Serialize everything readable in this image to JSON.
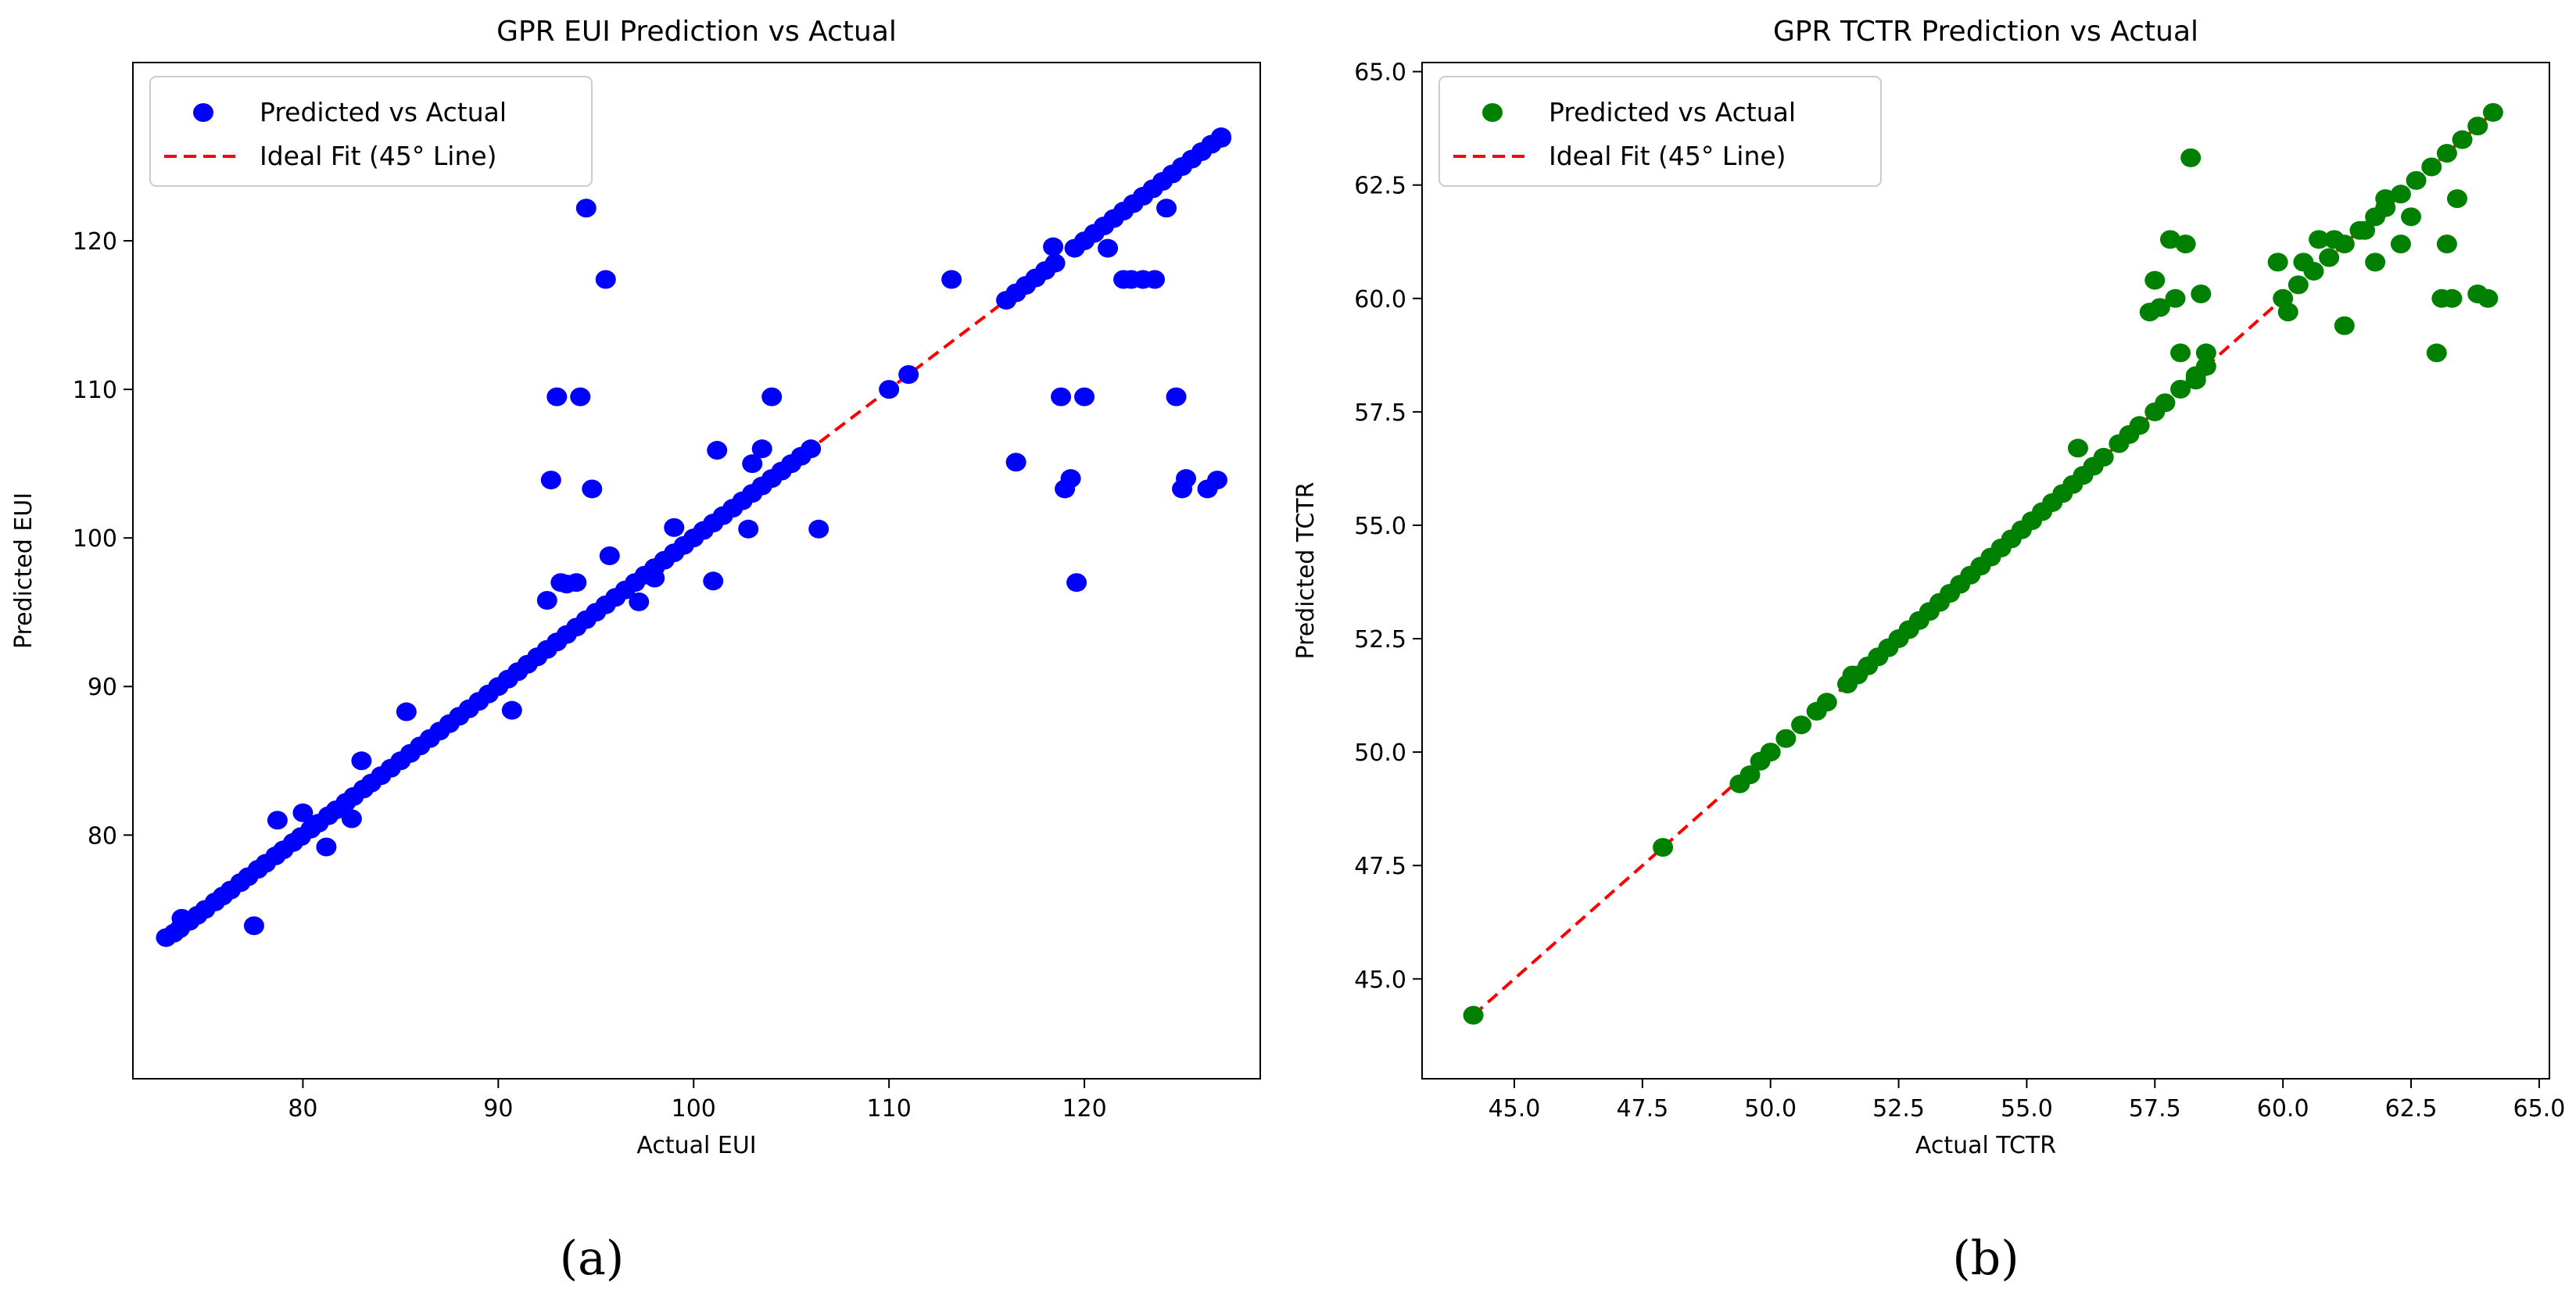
{
  "chart_data": [
    {
      "type": "scatter",
      "title": "GPR EUI Prediction vs Actual",
      "xlabel": "Actual EUI",
      "ylabel": "Predicted EUI",
      "xlim": [
        71.3,
        129.0
      ],
      "ylim": [
        63.6,
        132.0
      ],
      "xticks": [
        80,
        90,
        100,
        110,
        120
      ],
      "yticks": [
        80,
        90,
        100,
        110,
        120
      ],
      "tick_format": 0,
      "point_color": "#0000ff",
      "ideal_color": "#ff0000",
      "ideal_range": [
        73,
        127
      ],
      "legend": {
        "location": "top-left",
        "entries": [
          "Predicted vs Actual",
          "Ideal Fit (45° Line)"
        ]
      },
      "caption": "(a)",
      "series": [
        {
          "name": "Predicted vs Actual",
          "x": [
            73.0,
            73.4,
            73.7,
            74.2,
            74.6,
            75.0,
            75.5,
            75.9,
            76.3,
            76.8,
            77.2,
            77.7,
            78.1,
            78.6,
            79.0,
            79.5,
            79.9,
            80.4,
            80.8,
            81.3,
            81.7,
            82.2,
            82.6,
            83.1,
            83.5,
            84.0,
            84.5,
            85.0,
            85.5,
            86.0,
            86.5,
            87.0,
            87.5,
            88.0,
            88.5,
            89.0,
            89.5,
            90.0,
            90.5,
            91.0,
            91.5,
            92.0,
            92.5,
            93.0,
            93.5,
            94.0,
            94.5,
            95.0,
            95.5,
            96.0,
            96.5,
            97.0,
            97.5,
            98.0,
            98.5,
            99.0,
            99.5,
            100.0,
            100.5,
            101.0,
            101.5,
            102.0,
            102.5,
            103.0,
            103.5,
            104.0,
            104.5,
            105.0,
            105.5,
            106.0,
            110.0,
            111.0,
            116.0,
            116.5,
            117.0,
            117.5,
            118.0,
            118.5,
            119.5,
            120.0,
            120.5,
            121.0,
            121.5,
            122.0,
            122.5,
            123.0,
            123.5,
            124.0,
            124.5,
            125.0,
            125.5,
            126.0,
            126.5,
            127.0,
            73.8,
            77.5,
            78.7,
            80.0,
            81.2,
            82.5,
            83.0,
            85.3,
            90.7,
            92.5,
            92.7,
            93.0,
            93.2,
            93.5,
            94.0,
            94.2,
            94.5,
            94.8,
            95.5,
            95.7,
            97.2,
            98.0,
            99.0,
            101.0,
            101.2,
            102.8,
            103.0,
            103.5,
            104.0,
            106.4,
            113.2,
            116.5,
            118.4,
            118.8,
            119.0,
            119.3,
            119.6,
            120.0,
            121.2,
            122.0,
            122.4,
            123.0,
            123.6,
            124.2,
            124.7,
            125.0,
            125.2,
            126.3,
            126.8,
            127.0
          ],
          "y": [
            73.1,
            73.4,
            73.7,
            74.2,
            74.6,
            75.0,
            75.5,
            75.9,
            76.3,
            76.8,
            77.2,
            77.7,
            78.1,
            78.6,
            79.0,
            79.5,
            79.9,
            80.4,
            80.8,
            81.3,
            81.7,
            82.2,
            82.6,
            83.1,
            83.5,
            84.0,
            84.5,
            85.0,
            85.5,
            86.0,
            86.5,
            87.0,
            87.5,
            88.0,
            88.5,
            89.0,
            89.5,
            90.0,
            90.5,
            91.0,
            91.5,
            92.0,
            92.5,
            93.0,
            93.5,
            94.0,
            94.5,
            95.0,
            95.5,
            96.0,
            96.5,
            97.0,
            97.5,
            98.0,
            98.5,
            99.0,
            99.5,
            100.0,
            100.5,
            101.0,
            101.5,
            102.0,
            102.5,
            103.0,
            103.5,
            104.0,
            104.5,
            105.0,
            105.5,
            106.0,
            110.0,
            111.0,
            116.0,
            116.5,
            117.0,
            117.5,
            118.0,
            118.5,
            119.5,
            120.0,
            120.5,
            121.0,
            121.5,
            122.0,
            122.5,
            123.0,
            123.5,
            124.0,
            124.5,
            125.0,
            125.5,
            126.0,
            126.5,
            127.0,
            74.4,
            73.9,
            81.0,
            81.5,
            79.2,
            81.1,
            85.0,
            88.3,
            88.4,
            95.8,
            103.9,
            109.5,
            97.0,
            96.9,
            97.0,
            109.5,
            122.2,
            103.3,
            117.4,
            98.8,
            95.7,
            97.3,
            100.7,
            97.1,
            105.9,
            100.6,
            105.0,
            106.0,
            109.5,
            100.6,
            117.4,
            105.1,
            119.6,
            109.5,
            103.3,
            104.0,
            97.0,
            109.5,
            119.5,
            117.4,
            117.4,
            117.4,
            117.4,
            122.2,
            109.5,
            103.3,
            104.0,
            103.3,
            103.9,
            126.9
          ]
        }
      ]
    },
    {
      "type": "scatter",
      "title": "GPR TCTR Prediction vs Actual",
      "xlabel": "Actual TCTR",
      "ylabel": "Predicted TCTR",
      "xlim": [
        43.2,
        65.2
      ],
      "ylim": [
        42.8,
        65.2
      ],
      "xticks": [
        45.0,
        47.5,
        50.0,
        52.5,
        55.0,
        57.5,
        60.0,
        62.5,
        65.0
      ],
      "yticks": [
        45.0,
        47.5,
        50.0,
        52.5,
        55.0,
        57.5,
        60.0,
        62.5,
        65.0
      ],
      "tick_format": 1,
      "point_color": "#008000",
      "ideal_color": "#ff0000",
      "ideal_range": [
        44.2,
        64.2
      ],
      "legend": {
        "location": "top-left",
        "entries": [
          "Predicted vs Actual",
          "Ideal Fit (45° Line)"
        ]
      },
      "caption": "(b)",
      "series": [
        {
          "name": "Predicted vs Actual",
          "x": [
            44.2,
            47.9,
            49.4,
            49.6,
            49.8,
            50.0,
            50.3,
            50.6,
            50.9,
            51.1,
            51.5,
            51.7,
            51.9,
            52.1,
            52.3,
            52.5,
            52.7,
            52.9,
            53.1,
            53.3,
            53.5,
            53.7,
            53.9,
            54.1,
            54.3,
            54.5,
            54.7,
            54.9,
            55.1,
            55.3,
            55.5,
            55.7,
            55.9,
            56.1,
            56.3,
            56.5,
            56.8,
            57.0,
            57.2,
            57.5,
            57.7,
            58.0,
            58.3,
            58.5,
            60.0,
            60.3,
            60.6,
            60.9,
            61.2,
            61.5,
            61.8,
            62.0,
            62.3,
            62.6,
            62.9,
            63.2,
            63.5,
            63.8,
            64.1,
            51.6,
            56.0,
            57.4,
            57.5,
            57.6,
            57.8,
            57.9,
            58.0,
            58.1,
            58.2,
            58.3,
            58.4,
            58.5,
            59.9,
            60.1,
            60.4,
            60.7,
            61.0,
            61.2,
            61.6,
            61.8,
            62.0,
            62.3,
            62.5,
            63.0,
            63.1,
            63.2,
            63.3,
            63.4,
            63.8,
            64.0
          ],
          "y": [
            44.2,
            47.9,
            49.3,
            49.5,
            49.8,
            50.0,
            50.3,
            50.6,
            50.9,
            51.1,
            51.5,
            51.7,
            51.9,
            52.1,
            52.3,
            52.5,
            52.7,
            52.9,
            53.1,
            53.3,
            53.5,
            53.7,
            53.9,
            54.1,
            54.3,
            54.5,
            54.7,
            54.9,
            55.1,
            55.3,
            55.5,
            55.7,
            55.9,
            56.1,
            56.3,
            56.5,
            56.8,
            57.0,
            57.2,
            57.5,
            57.7,
            58.0,
            58.3,
            58.5,
            60.0,
            60.3,
            60.6,
            60.9,
            61.2,
            61.5,
            61.8,
            62.0,
            62.3,
            62.6,
            62.9,
            63.2,
            63.5,
            63.8,
            64.1,
            51.7,
            56.7,
            59.7,
            60.4,
            59.8,
            61.3,
            60.0,
            58.8,
            61.2,
            63.1,
            58.2,
            60.1,
            58.8,
            60.8,
            59.7,
            60.8,
            61.3,
            61.3,
            59.4,
            61.5,
            60.8,
            62.2,
            61.2,
            61.8,
            58.8,
            60.0,
            61.2,
            60.0,
            62.2,
            60.1,
            60.0
          ]
        }
      ]
    }
  ]
}
